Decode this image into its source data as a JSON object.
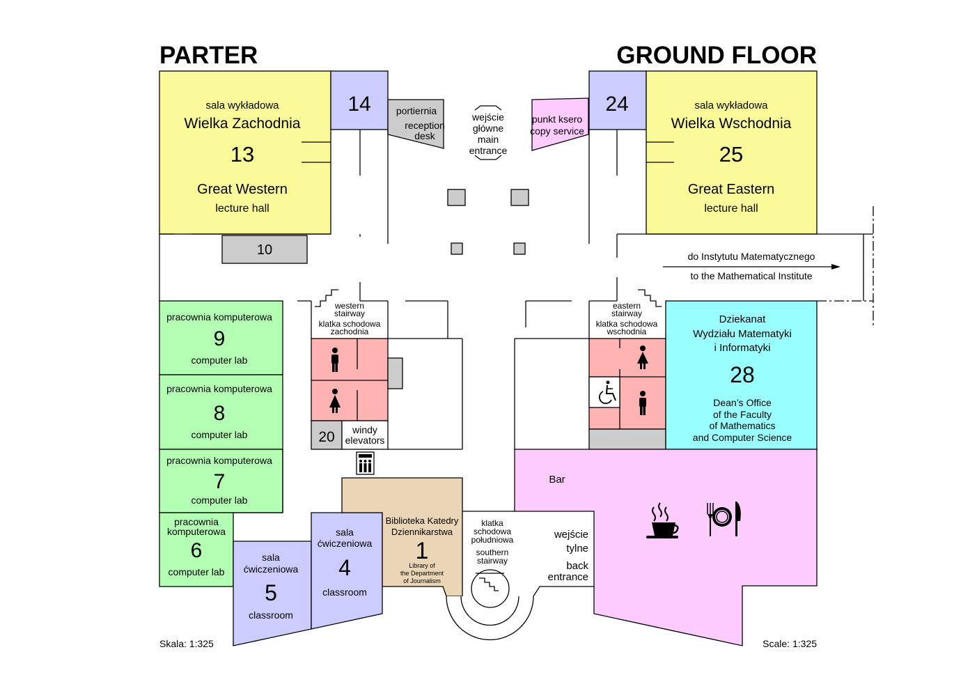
{
  "header": {
    "title_pl": "PARTER",
    "title_en": "GROUND FLOOR"
  },
  "colors": {
    "lecture_hall": "#fbfa9b",
    "room_blue": "#ccccff",
    "grey": "#cccccc",
    "copy_pink": "#ffccff",
    "computer_lab": "#b3ffb3",
    "restroom": "#ffb3b3",
    "deans_office": "#99ffff",
    "bar": "#ffccff",
    "library": "#ead5b6",
    "classroom": "#ccccff"
  },
  "rooms": {
    "hall13": {
      "pl_type": "sala wykładowa",
      "pl_name": "Wielka Zachodnia",
      "number": "13",
      "en_name": "Great Western",
      "en_type": "lecture hall"
    },
    "hall25": {
      "pl_type": "sala wykładowa",
      "pl_name": "Wielka Wschodnia",
      "number": "25",
      "en_name": "Great Eastern",
      "en_type": "lecture hall"
    },
    "room14": {
      "number": "14"
    },
    "room24": {
      "number": "24"
    },
    "room10": {
      "number": "10"
    },
    "room20": {
      "number": "20"
    },
    "reception": {
      "pl": "portiernia",
      "en_line1": "reception",
      "en_line2": "desk"
    },
    "copy": {
      "pl": "punkt ksero",
      "en": "copy service"
    },
    "main_entrance": {
      "line1": "wejście",
      "line2": "główne",
      "line3": "main",
      "line4": "entrance"
    },
    "lab9": {
      "pl": "pracownia komputerowa",
      "number": "9",
      "en": "computer lab"
    },
    "lab8": {
      "pl": "pracownia komputerowa",
      "number": "8",
      "en": "computer lab"
    },
    "lab7": {
      "pl": "pracownia komputerowa",
      "number": "7",
      "en": "computer lab"
    },
    "lab6": {
      "pl_line1": "pracownia",
      "pl_line2": "komputerowa",
      "number": "6",
      "en": "computer lab"
    },
    "class5": {
      "pl_line1": "sala",
      "pl_line2": "ćwiczeniowa",
      "number": "5",
      "en": "classroom"
    },
    "class4": {
      "pl_line1": "sala",
      "pl_line2": "ćwiczeniowa",
      "number": "4",
      "en": "classroom"
    },
    "library1": {
      "pl_line1": "Biblioteka Katedry",
      "pl_line2": "Dziennikarstwa",
      "number": "1",
      "en_line1": "Library of",
      "en_line2": "the Department",
      "en_line3": "of Journalism"
    },
    "deans28": {
      "pl_line1": "Dziekanat",
      "pl_line2": "Wydziału Matematyki",
      "pl_line3": "i Informatyki",
      "number": "28",
      "en_line1": "Dean’s Office",
      "en_line2": "of the Faculty",
      "en_line3": "of Mathematics",
      "en_line4": "and Computer Science"
    },
    "bar": {
      "label": "Bar"
    }
  },
  "stairs": {
    "western": {
      "en_line1": "western",
      "en_line2": "stairway",
      "pl_line1": "klatka schodowa",
      "pl_line2": "zachodnia"
    },
    "eastern": {
      "en_line1": "eastern",
      "en_line2": "stairway",
      "pl_line1": "klatka schodowa",
      "pl_line2": "wschodnia"
    },
    "southern": {
      "pl_line1": "klatka",
      "pl_line2": "schodowa",
      "pl_line3": "południowa",
      "en_line1": "southern",
      "en_line2": "stairway"
    }
  },
  "elevators": {
    "pl": "windy",
    "en": "elevators"
  },
  "back_entrance": {
    "pl_line1": "wejście",
    "pl_line2": "tylne",
    "en_line1": "back",
    "en_line2": "entrance"
  },
  "directions": {
    "pl": "do Instytutu Matematycznego",
    "en": "to the Mathematical Institute"
  },
  "scale": {
    "pl": "Skala: 1:325",
    "en": "Scale: 1:325"
  },
  "icons": [
    "male-restroom-icon",
    "female-restroom-icon",
    "accessible-restroom-icon",
    "elevator-icon",
    "coffee-cup-icon",
    "cutlery-plate-icon",
    "stairs-icon",
    "direction-arrow-icon"
  ]
}
